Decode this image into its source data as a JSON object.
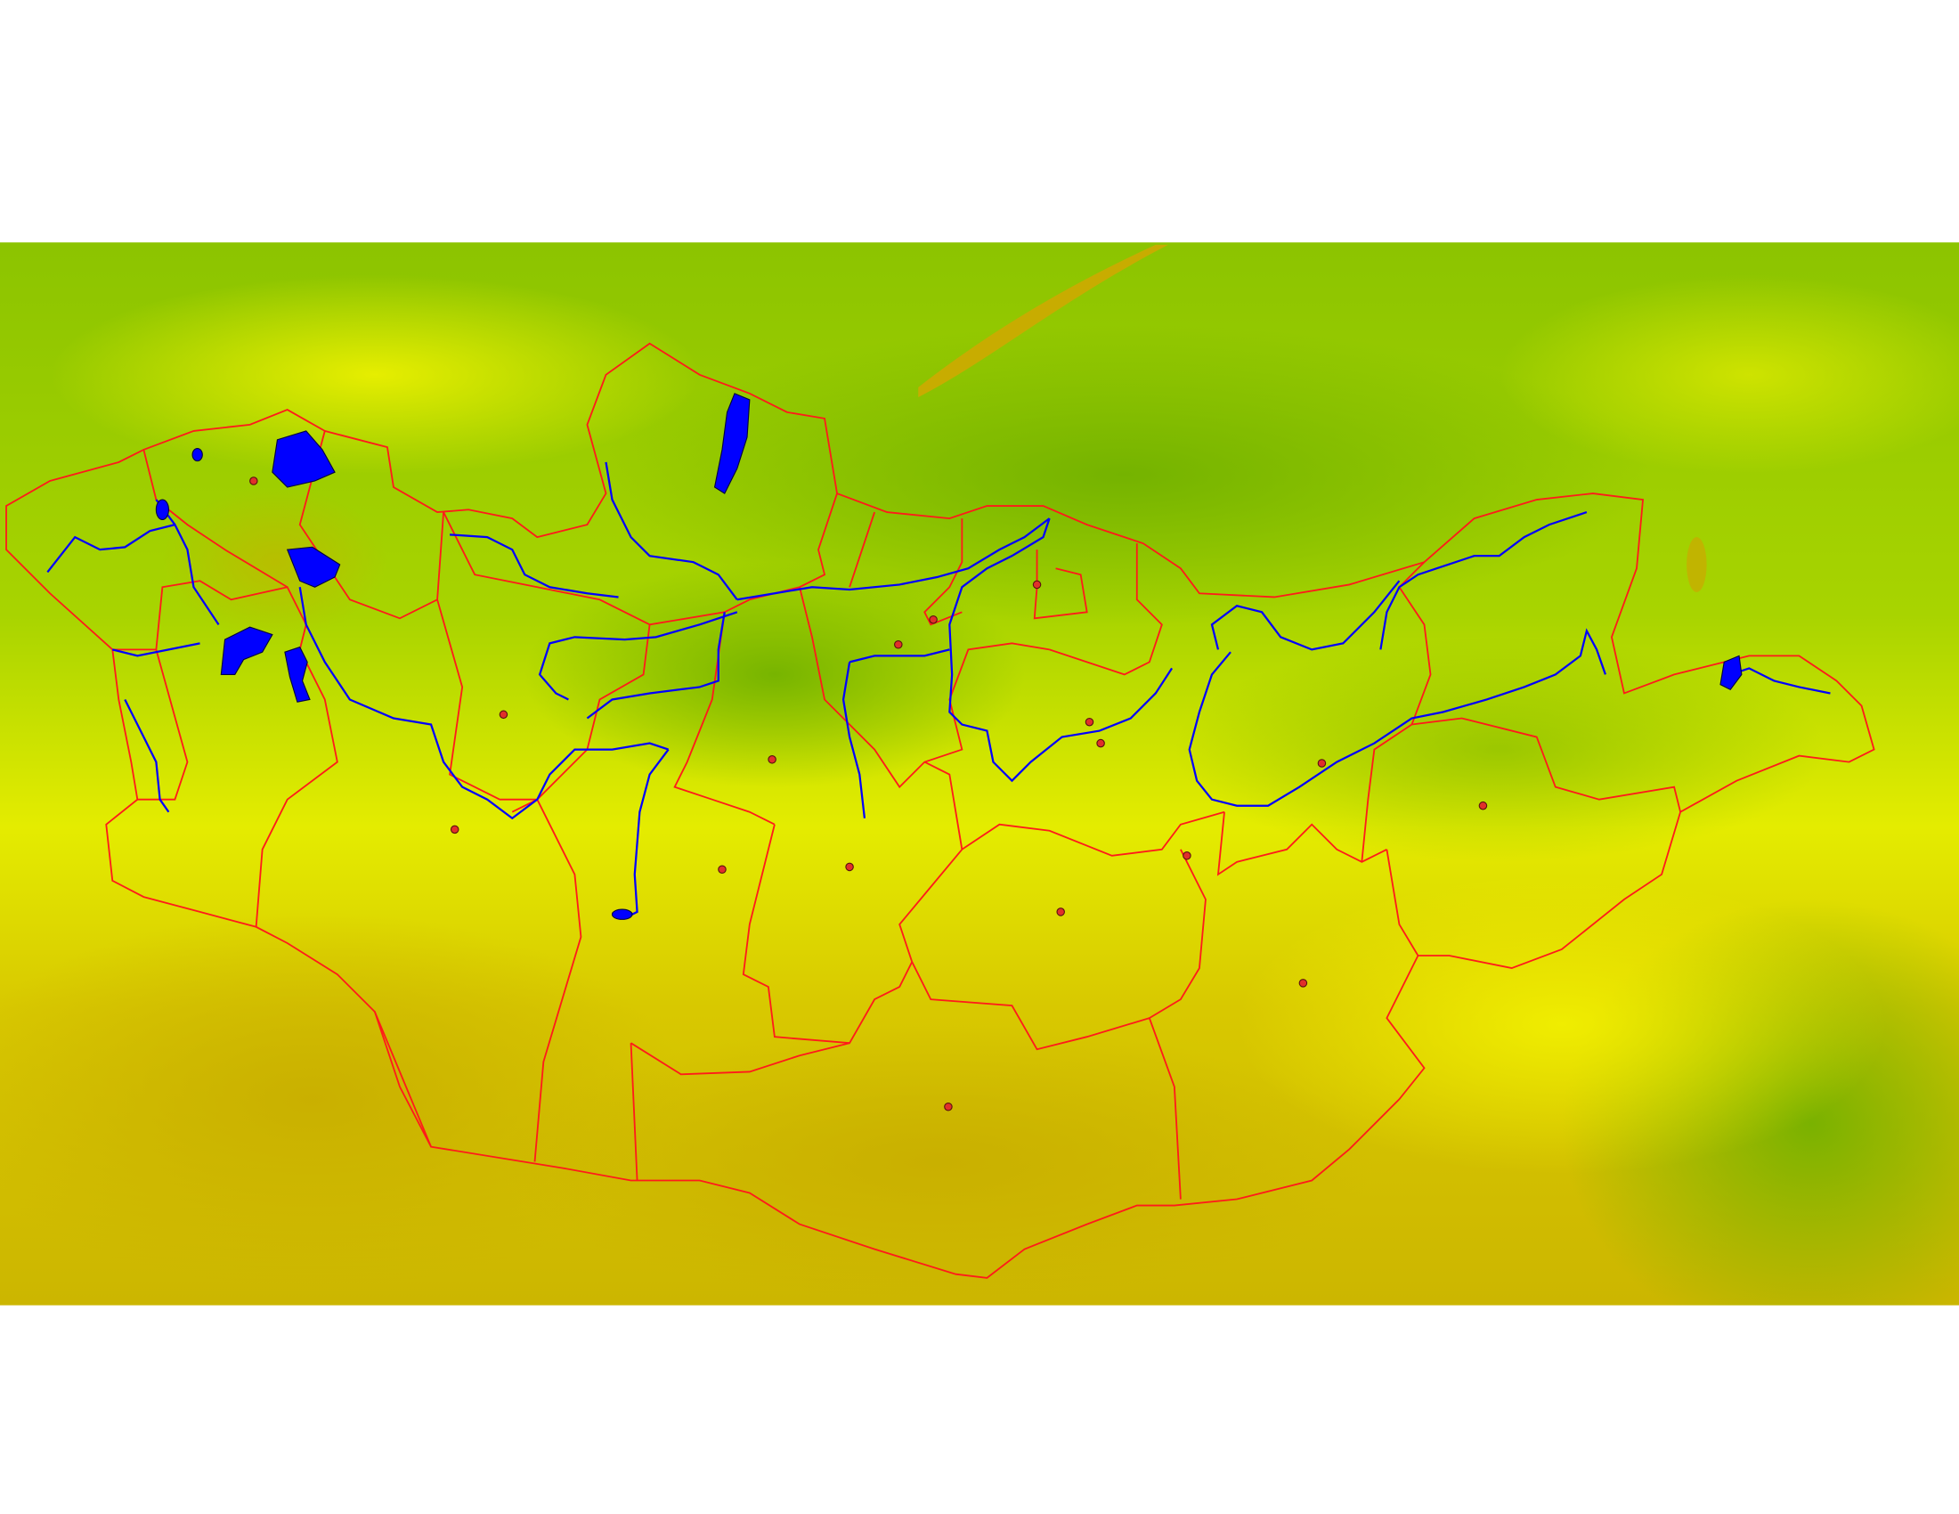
{
  "map": {
    "colors": {
      "background": "#ffffff",
      "vegetation_high": "#7db800",
      "vegetation_mid": "#e8f000",
      "vegetation_low": "#cbb300",
      "borders": "#ff1a1a",
      "water": "#0000ff",
      "settlements": "#e0302a"
    },
    "layers": [
      "vegetation-raster",
      "province-borders",
      "rivers",
      "lakes",
      "settlements"
    ]
  }
}
